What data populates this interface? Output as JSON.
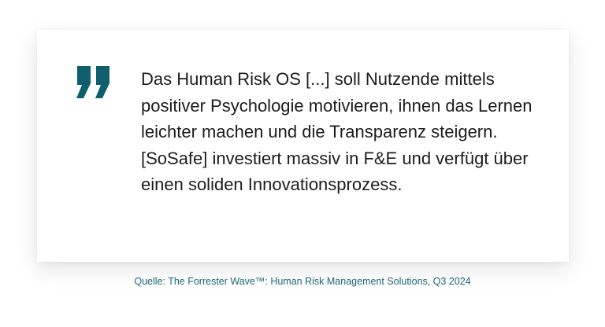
{
  "quote": {
    "text": "Das Human Risk OS [...] soll Nutzende mittels positiver Psychologie motivieren, ihnen das Lernen leichter machen und die Transparenz steigern. [SoSafe] investiert massiv in F&E und verfügt über einen soliden Innovationsprozess.",
    "icon": "closing-quote-icon"
  },
  "source": {
    "text": "Quelle: The Forrester Wave™: Human Risk Management Solutions, Q3 2024"
  },
  "colors": {
    "accent": "#0e5f6b",
    "text": "#1c1c1c",
    "source": "#1b6a78"
  }
}
